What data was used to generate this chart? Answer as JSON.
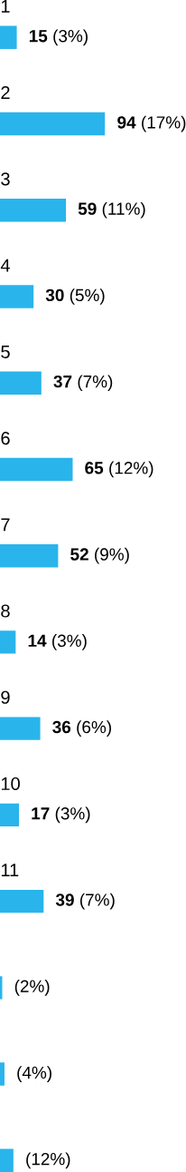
{
  "chart_data": {
    "type": "bar",
    "orientation": "horizontal",
    "categories": [
      "1",
      "2",
      "3",
      "4",
      "5",
      "6",
      "7",
      "8",
      "9",
      "10",
      "11",
      null,
      null,
      null
    ],
    "values": [
      15,
      94,
      59,
      30,
      37,
      65,
      52,
      14,
      36,
      17,
      39,
      2,
      4,
      12
    ],
    "value_labels": [
      "**15** (3%)",
      "**94** (17%)",
      "**59** (11%)",
      "**30** (5%)",
      "**37** (7%)",
      "**65** (12%)",
      "**52** (9%)",
      "**14** (3%)",
      "**36** (6%)",
      "**17** (3%)",
      "**39** (7%)",
      "(2%)",
      "(4%)",
      "(12%)"
    ],
    "color": "#29b4ec"
  }
}
